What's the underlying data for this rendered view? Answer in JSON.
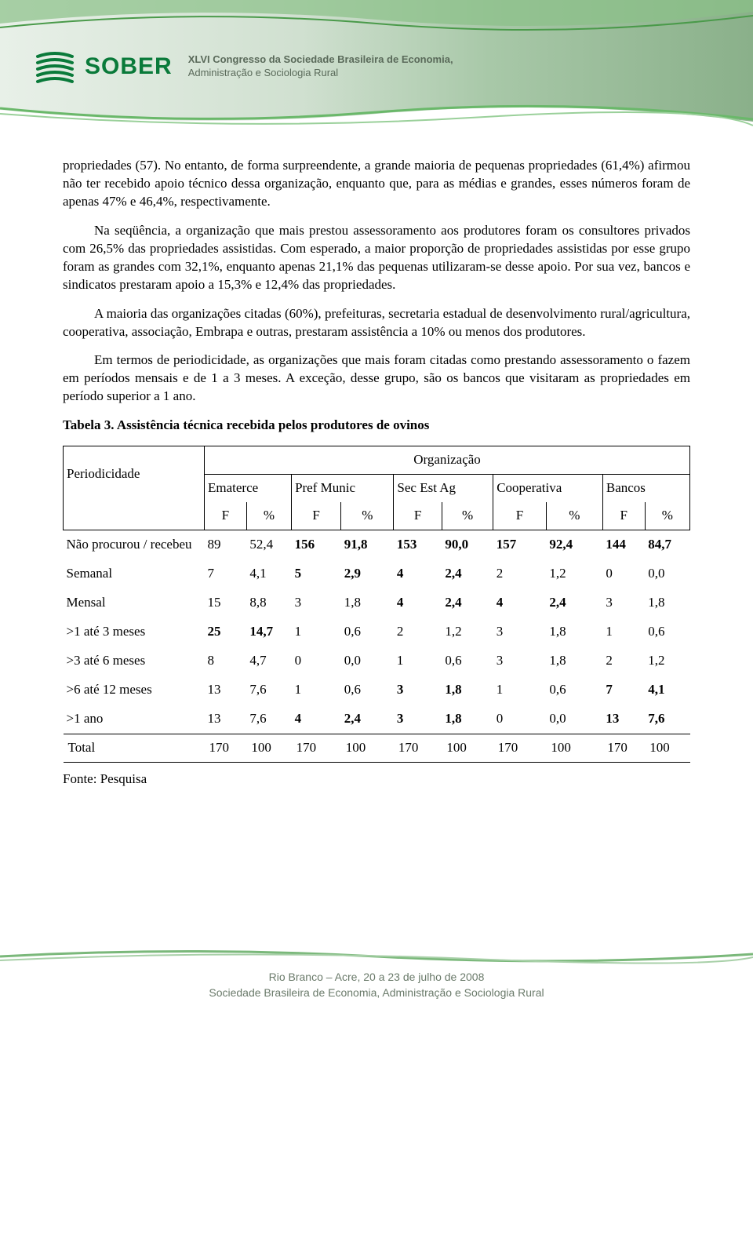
{
  "header": {
    "logo_text": "SOBER",
    "congress_line1": "XLVI Congresso da Sociedade Brasileira de Economia,",
    "congress_line2": "Administração e Sociologia Rural"
  },
  "paragraphs": {
    "p1": "propriedades (57). No entanto, de forma surpreendente, a grande maioria de pequenas propriedades (61,4%) afirmou não ter recebido apoio técnico dessa organização, enquanto que, para as médias e grandes, esses números foram de apenas 47% e 46,4%, respectivamente.",
    "p2": "Na seqüência, a organização que mais prestou assessoramento aos produtores foram os consultores privados com 26,5% das propriedades assistidas. Com esperado, a maior proporção de propriedades assistidas por esse grupo foram as grandes com 32,1%, enquanto apenas 21,1% das pequenas utilizaram-se desse apoio. Por sua vez, bancos e sindicatos prestaram apoio a 15,3% e 12,4% das propriedades.",
    "p3": "A maioria das organizações citadas (60%), prefeituras, secretaria estadual de desenvolvimento rural/agricultura, cooperativa, associação, Embrapa e outras, prestaram assistência a 10% ou menos dos produtores.",
    "p4": "Em termos de periodicidade, as organizações que mais foram citadas como prestando assessoramento o fazem em períodos mensais e de 1 a 3 meses. A exceção, desse grupo, são os bancos que visitaram as propriedades em período superior a 1 ano."
  },
  "table": {
    "caption": "Tabela 3. Assistência técnica recebida pelos produtores de ovinos",
    "org_label": "Organização",
    "periodicidade_label": "Periodicidade",
    "col_f": "F",
    "col_pct": "%",
    "columns": [
      "Ematerce",
      "Pref Munic",
      "Sec Est Ag",
      "Cooperativa",
      "Bancos"
    ],
    "rows": [
      {
        "label": "Não procurou / recebeu",
        "values": [
          "89",
          "52,4",
          "156",
          "91,8",
          "153",
          "90,0",
          "157",
          "92,4",
          "144",
          "84,7"
        ],
        "bold": [
          0,
          0,
          1,
          1,
          1,
          1,
          1,
          1,
          1,
          1
        ]
      },
      {
        "label": "Semanal",
        "values": [
          "7",
          "4,1",
          "5",
          "2,9",
          "4",
          "2,4",
          "2",
          "1,2",
          "0",
          "0,0"
        ],
        "bold": [
          0,
          0,
          1,
          1,
          1,
          1,
          0,
          0,
          0,
          0
        ]
      },
      {
        "label": "Mensal",
        "values": [
          "15",
          "8,8",
          "3",
          "1,8",
          "4",
          "2,4",
          "4",
          "2,4",
          "3",
          "1,8"
        ],
        "bold": [
          0,
          0,
          0,
          0,
          1,
          1,
          1,
          1,
          0,
          0
        ]
      },
      {
        "label": ">1 até 3 meses",
        "values": [
          "25",
          "14,7",
          "1",
          "0,6",
          "2",
          "1,2",
          "3",
          "1,8",
          "1",
          "0,6"
        ],
        "bold": [
          1,
          1,
          0,
          0,
          0,
          0,
          0,
          0,
          0,
          0
        ]
      },
      {
        "label": ">3 até 6 meses",
        "values": [
          "8",
          "4,7",
          "0",
          "0,0",
          "1",
          "0,6",
          "3",
          "1,8",
          "2",
          "1,2"
        ],
        "bold": [
          0,
          0,
          0,
          0,
          0,
          0,
          0,
          0,
          0,
          0
        ]
      },
      {
        "label": ">6 até 12 meses",
        "values": [
          "13",
          "7,6",
          "1",
          "0,6",
          "3",
          "1,8",
          "1",
          "0,6",
          "7",
          "4,1"
        ],
        "bold": [
          0,
          0,
          0,
          0,
          1,
          1,
          0,
          0,
          1,
          1
        ]
      },
      {
        "label": ">1 ano",
        "values": [
          "13",
          "7,6",
          "4",
          "2,4",
          "3",
          "1,8",
          "0",
          "0,0",
          "13",
          "7,6"
        ],
        "bold": [
          0,
          0,
          1,
          1,
          1,
          1,
          0,
          0,
          1,
          1
        ]
      }
    ],
    "total": {
      "label": "Total",
      "values": [
        "170",
        "100",
        "170",
        "100",
        "170",
        "100",
        "170",
        "100",
        "170",
        "100"
      ]
    },
    "source": "Fonte: Pesquisa"
  },
  "footer": {
    "line1": "Rio Branco – Acre, 20 a 23 de julho de 2008",
    "line2": "Sociedade Brasileira de Economia, Administração e Sociologia Rural"
  },
  "colors": {
    "green_dark": "#0a7a3a",
    "green_mid": "#5a9a5a",
    "green_light": "#b8d8b8",
    "wave_green": "#7ab87a",
    "text_gray": "#6a7a6a"
  }
}
